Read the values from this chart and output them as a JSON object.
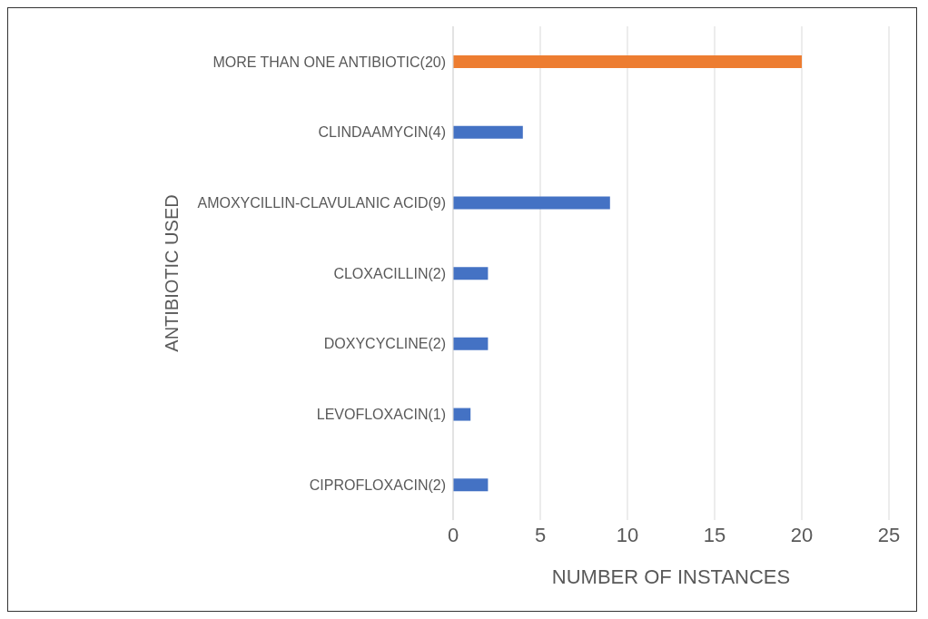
{
  "chart_data": {
    "type": "bar",
    "orientation": "horizontal",
    "ylabel": "ANTIBIOTIC USED",
    "xlabel": "NUMBER OF INSTANCES",
    "categories": [
      "MORE THAN ONE ANTIBIOTIC(20)",
      "CLINDAAMYCIN(4)",
      "AMOXYCILLIN-CLAVULANIC ACID(9)",
      "CLOXACILLIN(2)",
      "DOXYCYCLINE(2)",
      "LEVOFLOXACIN(1)",
      "CIPROFLOXACIN(2)"
    ],
    "values": [
      20,
      4,
      9,
      2,
      2,
      1,
      2
    ],
    "colors": [
      "#ed7d31",
      "#4472c4",
      "#4472c4",
      "#4472c4",
      "#4472c4",
      "#4472c4",
      "#4472c4"
    ],
    "xlim": [
      0,
      25
    ],
    "xticks": [
      0,
      5,
      10,
      15,
      20,
      25
    ],
    "grid": "x"
  }
}
